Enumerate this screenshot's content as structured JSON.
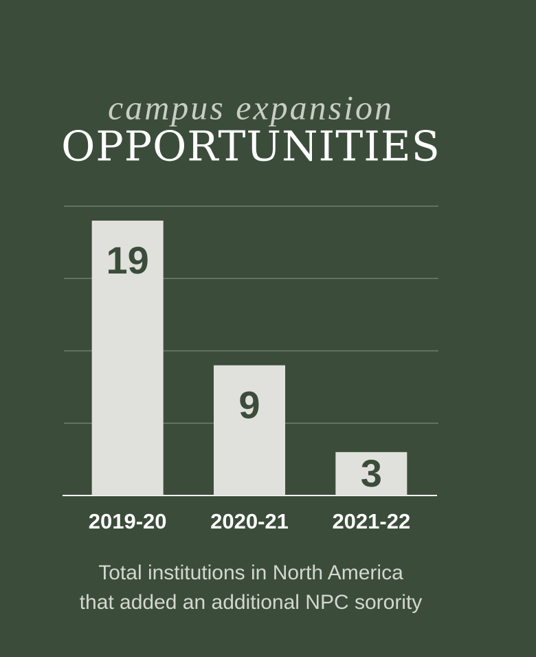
{
  "chart_data": {
    "type": "bar",
    "subtitle": "campus expansion",
    "title": "OPPORTUNITIES",
    "categories": [
      "2019-20",
      "2020-21",
      "2021-22"
    ],
    "values": [
      19,
      9,
      3
    ],
    "color": "#e0e1dc",
    "ylim": [
      0,
      20
    ],
    "yticks": [
      5,
      10,
      15,
      20
    ],
    "grid": true,
    "caption": [
      "Total institutions in North America",
      "that added an additional NPC sorority"
    ]
  }
}
